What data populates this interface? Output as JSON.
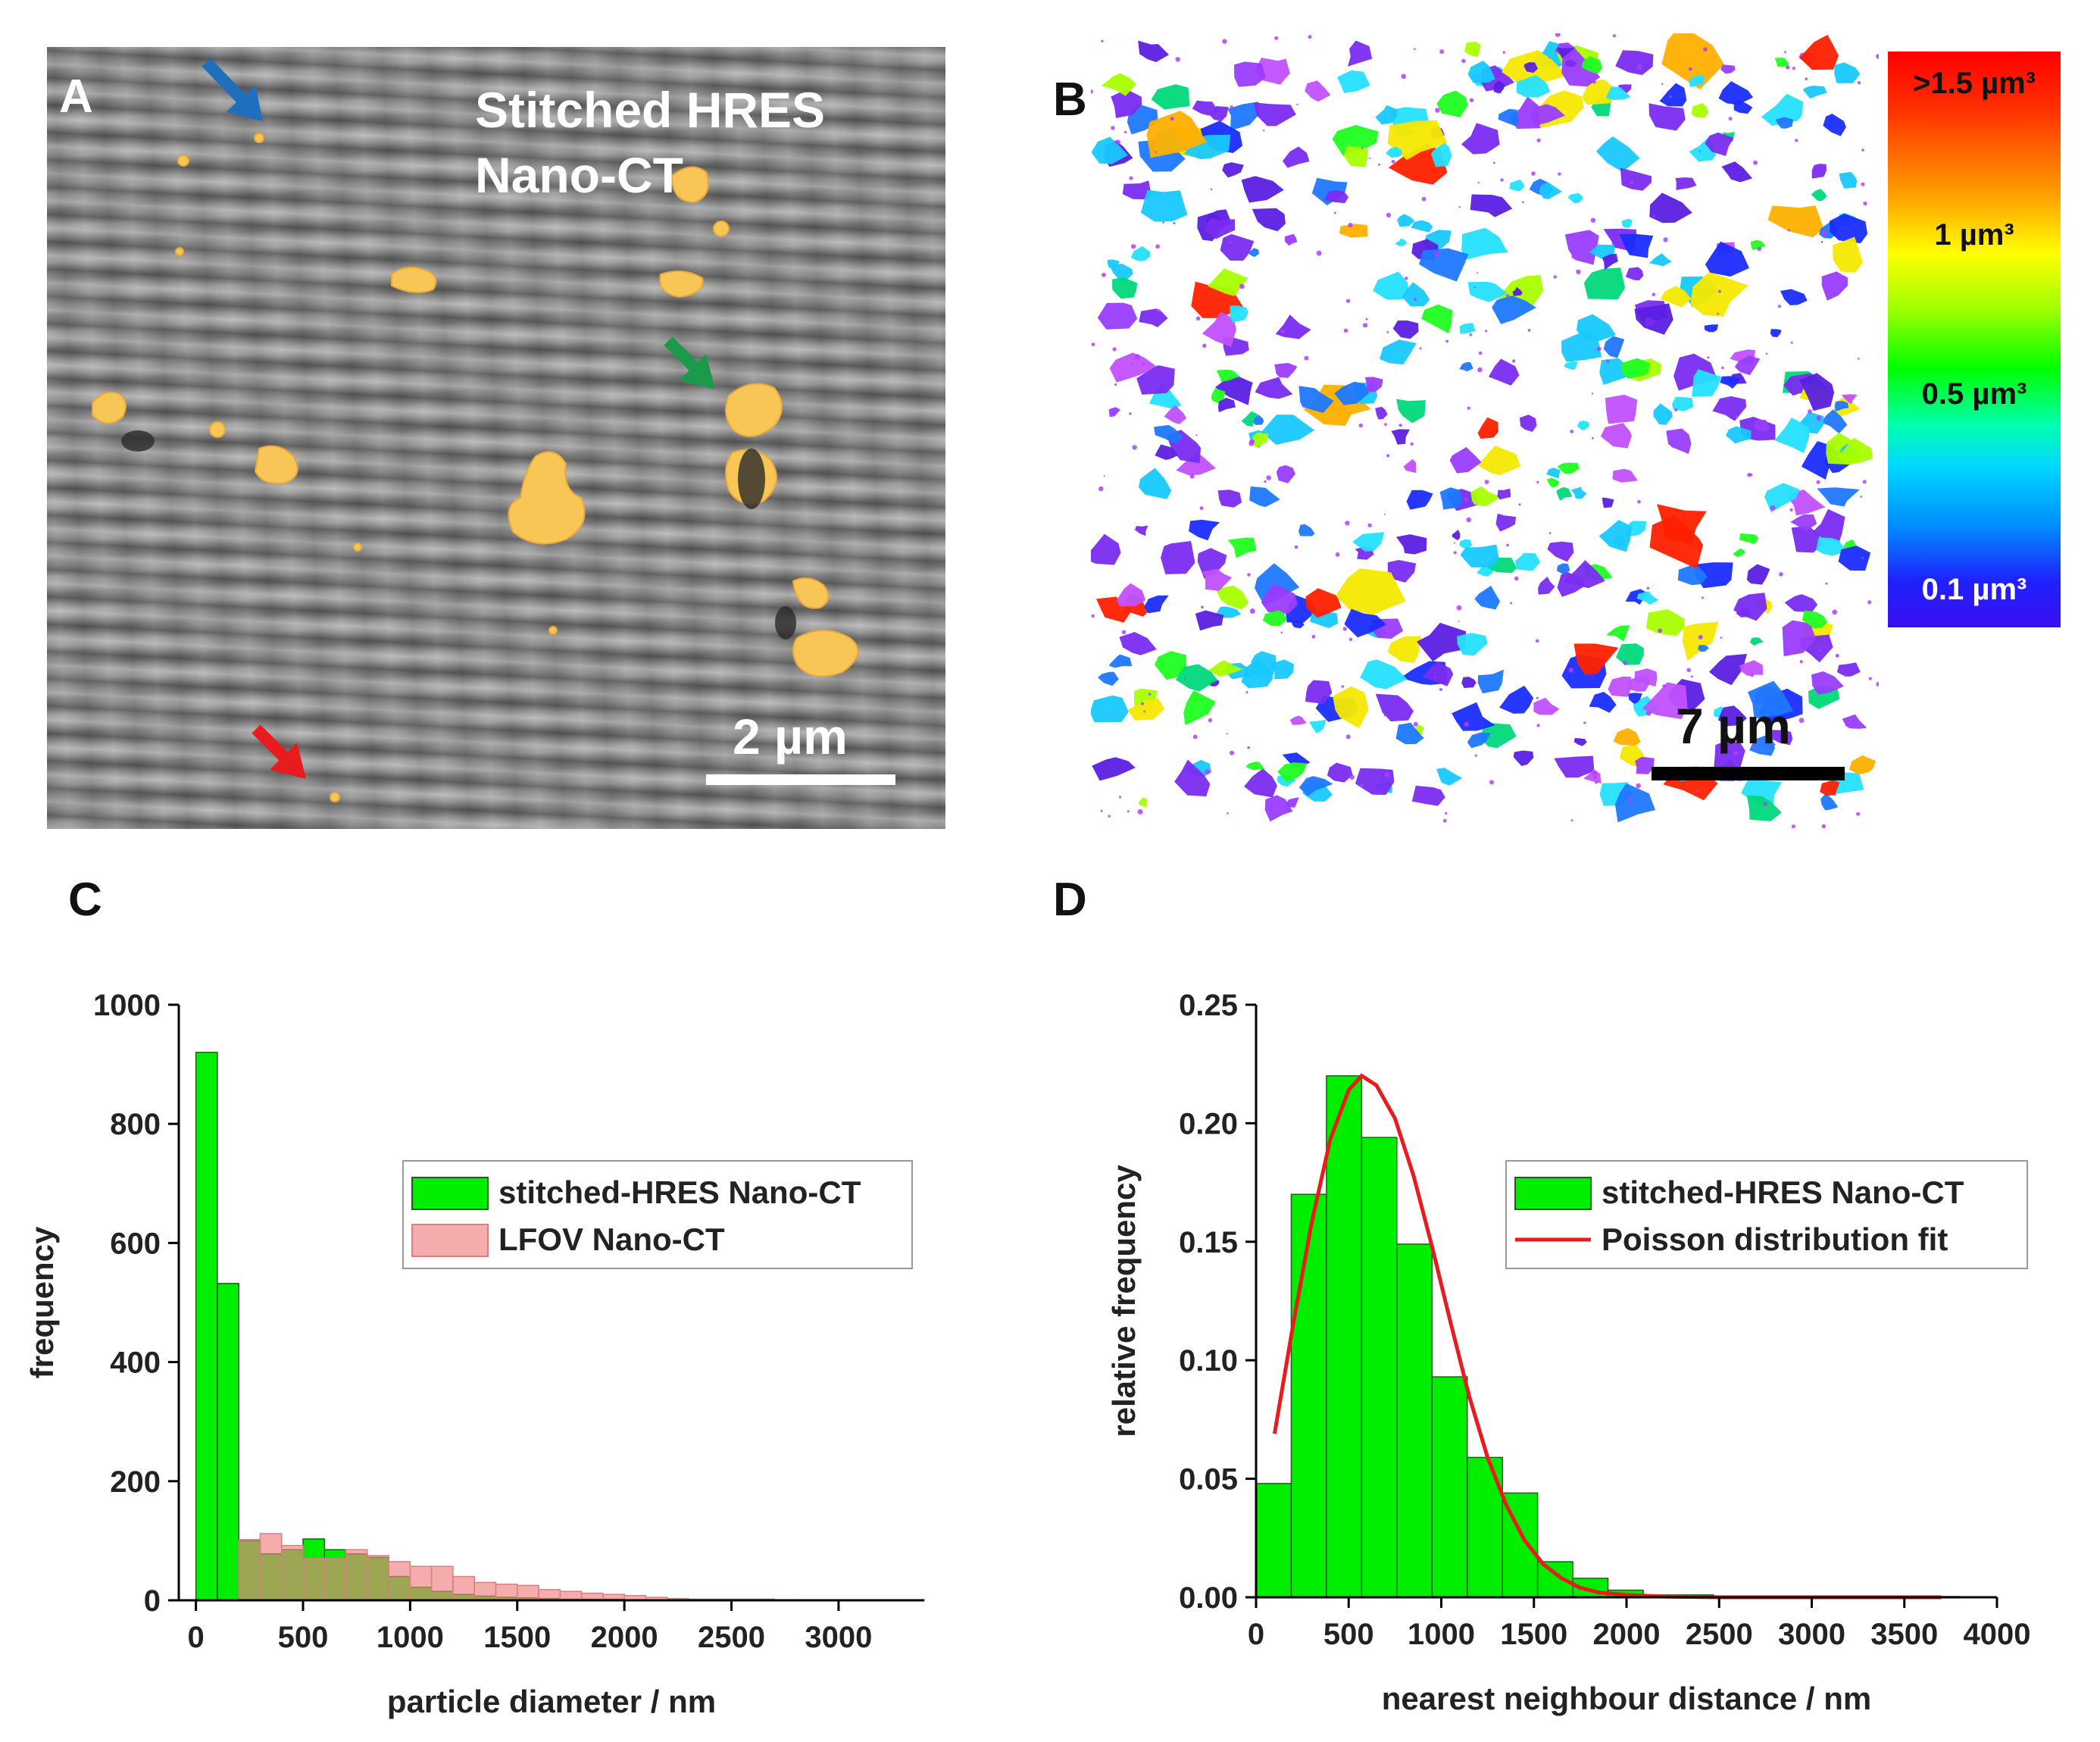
{
  "panels": {
    "a": {
      "letter": "A",
      "title_line1": "Stitched HRES",
      "title_line2": "Nano-CT",
      "scale_bar": "2 µm",
      "arrow_colors": {
        "blue": "#1f6fbd",
        "green": "#1a9a4a",
        "red": "#e81c1c"
      },
      "particle_color": "#f7c657"
    },
    "b": {
      "letter": "B",
      "scale_bar": "7 µm",
      "colorbar": {
        "top": ">1.5 µm³",
        "upper_mid": "1 µm³",
        "lower_mid": "0.5 µm³",
        "bottom": "0.1 µm³"
      }
    },
    "c": {
      "letter": "C"
    },
    "d": {
      "letter": "D"
    }
  },
  "chart_data": [
    {
      "panel": "C",
      "type": "bar",
      "xlabel": "particle diameter / nm",
      "ylabel": "frequency",
      "xlim": [
        -80,
        3400
      ],
      "ylim": [
        0,
        1000
      ],
      "xticks": [
        0,
        500,
        1000,
        1500,
        2000,
        2500,
        3000
      ],
      "xtick_labels": [
        "0",
        "500",
        "1000",
        "1500",
        "2000",
        "2500",
        "3000"
      ],
      "yticks": [
        0,
        200,
        400,
        600,
        800,
        1000
      ],
      "ytick_labels": [
        "0",
        "200",
        "400",
        "600",
        "800",
        "1000"
      ],
      "legend_position": "center-right",
      "series": [
        {
          "name": "stitched-HRES Nano-CT",
          "color": "#00ee00",
          "bin_width": 100,
          "x": [
            50,
            150,
            250,
            350,
            450,
            550,
            650,
            750,
            850,
            950,
            1050,
            1150,
            1250,
            1350,
            1450,
            1550,
            1650,
            1750,
            1850,
            1950,
            2050,
            2150
          ],
          "values": [
            920,
            532,
            100,
            78,
            85,
            103,
            85,
            78,
            72,
            40,
            22,
            15,
            10,
            7,
            5,
            4,
            3,
            2,
            2,
            2,
            1,
            1
          ]
        },
        {
          "name": "LFOV Nano-CT",
          "color": "#f08080",
          "bin_width": 100,
          "x": [
            250,
            350,
            450,
            550,
            650,
            750,
            850,
            950,
            1050,
            1150,
            1250,
            1350,
            1450,
            1550,
            1650,
            1750,
            1850,
            1950,
            2050,
            2150,
            2250,
            2350,
            2450,
            2550,
            2650,
            2750,
            2850,
            2950,
            3050,
            3150,
            3250,
            3350
          ],
          "values": [
            102,
            112,
            92,
            70,
            70,
            85,
            75,
            65,
            57,
            57,
            40,
            30,
            27,
            25,
            18,
            15,
            12,
            10,
            8,
            5,
            3,
            2,
            2,
            2,
            2,
            1,
            1,
            1,
            1,
            1,
            1,
            1
          ]
        }
      ]
    },
    {
      "panel": "D",
      "type": "bar",
      "xlabel": "nearest neighbour distance / nm",
      "ylabel": "relative frequency",
      "xlim": [
        0,
        4000
      ],
      "ylim": [
        0,
        0.25
      ],
      "xticks": [
        0,
        500,
        1000,
        1500,
        2000,
        2500,
        3000,
        3500,
        4000
      ],
      "xtick_labels": [
        "0",
        "500",
        "1000",
        "1500",
        "2000",
        "2500",
        "3000",
        "3500",
        "4000"
      ],
      "yticks": [
        0,
        0.05,
        0.1,
        0.15,
        0.2,
        0.25
      ],
      "ytick_labels": [
        "0.00",
        "0.05",
        "0.10",
        "0.15",
        "0.20",
        "0.25"
      ],
      "legend_position": "center-right",
      "series": [
        {
          "name": "stitched-HRES Nano-CT",
          "color": "#00ee00",
          "bin_width": 190,
          "x": [
            95,
            285,
            475,
            665,
            855,
            1045,
            1235,
            1425,
            1615,
            1805,
            1995,
            2185,
            2375,
            2565,
            2755,
            2945,
            3135,
            3325,
            3515,
            3705
          ],
          "values": [
            0.048,
            0.17,
            0.22,
            0.194,
            0.149,
            0.093,
            0.059,
            0.044,
            0.015,
            0.008,
            0.003,
            0.001,
            0.001,
            0.0005,
            0.0005,
            0.0005,
            0.0003,
            0.0003,
            0.0003,
            0.0003
          ]
        },
        {
          "name": "Poisson distribution fit",
          "type": "line",
          "color": "#e81c1c",
          "x": [
            100,
            200,
            300,
            400,
            500,
            570,
            650,
            750,
            850,
            950,
            1050,
            1150,
            1250,
            1350,
            1450,
            1550,
            1650,
            1750,
            1850,
            2000,
            2200,
            2500,
            3000,
            3500,
            3700
          ],
          "values": [
            0.069,
            0.115,
            0.158,
            0.193,
            0.214,
            0.22,
            0.216,
            0.202,
            0.178,
            0.148,
            0.116,
            0.085,
            0.059,
            0.039,
            0.024,
            0.014,
            0.008,
            0.004,
            0.002,
            0.001,
            0.0003,
            0.0,
            0.0,
            0.0,
            0.0
          ]
        }
      ]
    }
  ]
}
